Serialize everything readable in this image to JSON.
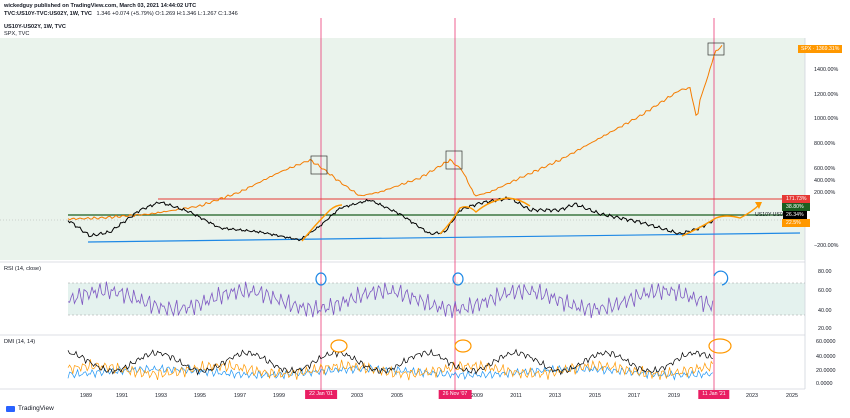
{
  "header": {
    "line1": "wickedguy published on TradingView.com, March 03, 2021 14:44:02 UTC",
    "line2_symbol": "TVC:US10Y-TVC:US02Y, 1W, TVC",
    "line2_values": "1.346 +0.074 (+5.79%) O:1.269 H:1.346 L:1.267 C:1.346",
    "line3": "US10Y-US02Y, 1W, TVC",
    "line4": "SPX, TVC"
  },
  "panels": {
    "rsi_label": "RSI (14, close)",
    "dmi_label": "DMI (14, 14)"
  },
  "main_axis_labels": [
    "1400.00%",
    "1200.00%",
    "1000.00%",
    "800.00%",
    "600.00%",
    "400.00%",
    "200.00%",
    "−200.00%"
  ],
  "rsi_axis_labels": [
    "80.00",
    "60.00",
    "40.00",
    "20.00"
  ],
  "dmi_axis_labels": [
    "60.0000",
    "40.0000",
    "20.0000",
    "0.0000"
  ],
  "x_axis_labels": [
    "1989",
    "1991",
    "1993",
    "1995",
    "1997",
    "1999",
    "2003",
    "2005",
    "2009",
    "2011",
    "2013",
    "2015",
    "2017",
    "2019",
    "2023",
    "2025"
  ],
  "date_tags": [
    "22 Jan '01",
    "26 Nov '07",
    "11 Jan '21"
  ],
  "price_tags": {
    "spx": "SPX · 1369.31%",
    "red_level": "171.73%",
    "green_level": "38.80%",
    "ratio_label": "US10Y-US02Y",
    "ratio_value": "26.34%",
    "blue_level": "22.5%"
  },
  "footer": {
    "brand": "TradingView"
  },
  "colors": {
    "spx": "#f57c00",
    "ratio": "#000000",
    "red_line": "#e53935",
    "green_line": "#1b5e20",
    "blue_line": "#1e88e5",
    "rsi": "#7e57c2",
    "dmi_plus": "#2196f3",
    "dmi_minus": "#ff9800",
    "adx": "#000000",
    "vline": "#e91e63",
    "annotation_orange": "#ff9800",
    "annotation_blue": "#1e88e5"
  },
  "icons": [
    "tradingview-logo-icon"
  ]
}
